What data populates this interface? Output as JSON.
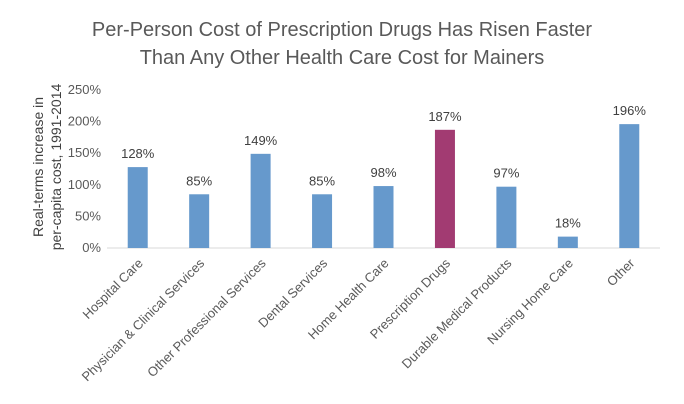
{
  "chart_data": {
    "type": "bar",
    "title_lines": [
      "Per-Person Cost of Prescription Drugs Has Risen Faster",
      "Than Any Other Health Care Cost for Mainers"
    ],
    "ylabel_lines": [
      "Real-terms increase in",
      "per-capita cost, 1991-2014"
    ],
    "xlabel": "",
    "categories": [
      "Hospital Care",
      "Physician & Clinical Services",
      "Other Professional Services",
      "Dental Services",
      "Home Health Care",
      "Prescription Drugs",
      "Durable Medical Products",
      "Nursing Home Care",
      "Other"
    ],
    "values": [
      128,
      85,
      149,
      85,
      98,
      187,
      97,
      18,
      196
    ],
    "data_labels": [
      "128%",
      "85%",
      "149%",
      "85%",
      "98%",
      "187%",
      "97%",
      "18%",
      "196%"
    ],
    "ylim": [
      0,
      250
    ],
    "yticks": [
      0,
      50,
      100,
      150,
      200,
      250
    ],
    "ytick_labels": [
      "0%",
      "50%",
      "100%",
      "150%",
      "200%",
      "250%"
    ],
    "grid": false,
    "legend": "none",
    "colors": {
      "default": "#6699CC",
      "highlight": "#A23B72"
    },
    "highlight_index": 5
  }
}
